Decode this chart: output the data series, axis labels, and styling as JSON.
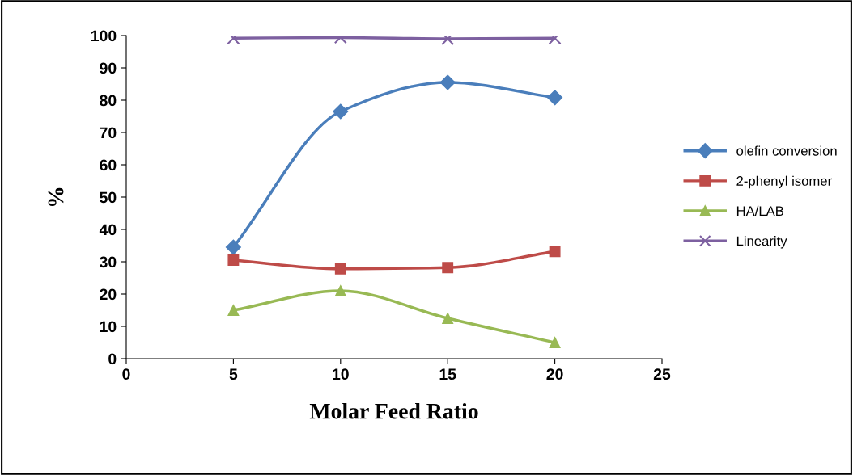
{
  "chart_data": {
    "type": "line",
    "xlabel": "Molar Feed Ratio",
    "ylabel": "%",
    "x": [
      5,
      10,
      15,
      20
    ],
    "xlim": [
      0,
      25
    ],
    "xticks": [
      0,
      5,
      10,
      15,
      20,
      25
    ],
    "ylim": [
      0,
      100
    ],
    "yticks": [
      0,
      10,
      20,
      30,
      40,
      50,
      60,
      70,
      80,
      90,
      100
    ],
    "grid": false,
    "legend": "right",
    "series": [
      {
        "name": "olefin conversion",
        "color": "#4a7ebb",
        "marker": "diamond",
        "values": [
          34.5,
          76.5,
          85.5,
          80.8
        ]
      },
      {
        "name": "2-phenyl isomer",
        "color": "#be4b48",
        "marker": "square",
        "values": [
          30.5,
          27.8,
          28.2,
          33.2
        ]
      },
      {
        "name": "HA/LAB",
        "color": "#98b954",
        "marker": "triangle",
        "values": [
          15,
          21,
          12.5,
          5
        ]
      },
      {
        "name": "Linearity",
        "color": "#7d60a0",
        "marker": "cross",
        "values": [
          99.2,
          99.4,
          99,
          99.2
        ]
      }
    ]
  }
}
